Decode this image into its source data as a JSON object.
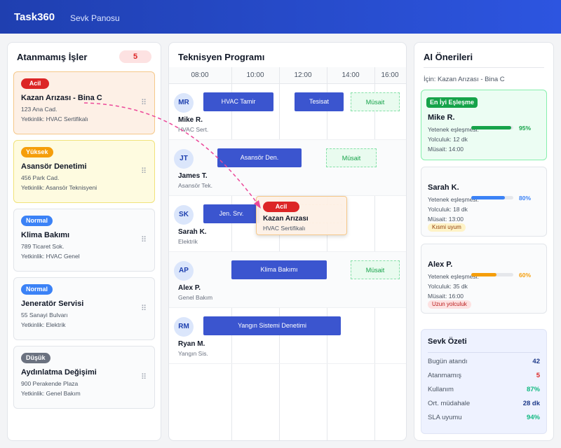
{
  "header": {
    "brand": "Task360",
    "subtitle": "Sevk Panosu"
  },
  "unassigned": {
    "title": "Atanmamış İşler",
    "count": 5,
    "jobs": [
      {
        "priority": "Acil",
        "title": "Kazan Arızası - Bina C",
        "address": "123 Ana Cad.",
        "skill": "Yetkinlik: HVAC Sertifikalı"
      },
      {
        "priority": "Yüksek",
        "title": "Asansör Denetimi",
        "address": "456 Park Cad.",
        "skill": "Yetkinlik: Asansör Teknisyeni"
      },
      {
        "priority": "Normal",
        "title": "Klima Bakımı",
        "address": "789 Ticaret Sok.",
        "skill": "Yetkinlik: HVAC Genel"
      },
      {
        "priority": "Normal",
        "title": "Jeneratör Servisi",
        "address": "55 Sanayi Bulvarı",
        "skill": "Yetkinlik: Elektrik"
      },
      {
        "priority": "Düşük",
        "title": "Aydınlatma Değişimi",
        "address": "900 Perakende Plaza",
        "skill": "Yetkinlik: Genel Bakım"
      }
    ]
  },
  "schedule": {
    "title": "Teknisyen Programı",
    "times": [
      "08:00",
      "10:00",
      "12:00",
      "14:00",
      "16:00"
    ],
    "technicians": [
      {
        "initials": "MR",
        "name": "Mike R.",
        "role": "HVAC Sert.",
        "blocks": [
          "HVAC Tamir",
          "Tesisat",
          "Müsait"
        ]
      },
      {
        "initials": "JT",
        "name": "James T.",
        "role": "Asansör Tek.",
        "blocks": [
          "Asansör Den.",
          "Müsait"
        ]
      },
      {
        "initials": "SK",
        "name": "Sarah K.",
        "role": "Elektrik",
        "blocks": [
          "Jen. Srv."
        ]
      },
      {
        "initials": "AP",
        "name": "Alex P.",
        "role": "Genel Bakım",
        "blocks": [
          "Klima Bakımı",
          "Müsait"
        ]
      },
      {
        "initials": "RM",
        "name": "Ryan M.",
        "role": "Yangın Sis.",
        "blocks": [
          "Yangın Sistemi Denetimi"
        ]
      }
    ],
    "dragged": {
      "priority": "Acil",
      "title": "Kazan Arızası",
      "skill": "HVAC Sertifikalı"
    }
  },
  "suggestions": {
    "title": "AI Önerileri",
    "for": "İçin: Kazan Arızası - Bina C",
    "cards": [
      {
        "badge": "En İyi Eşleşme",
        "name": "Mike R.",
        "match_text": "Yetenek eşleşmesi:",
        "match": 95,
        "match_label": "95%",
        "travel": "Yolculuk: 12 dk",
        "available": "Müsait: 14:00"
      },
      {
        "name": "Sarah K.",
        "match_text": "Yetenek eşleşmesi:",
        "match": 80,
        "match_label": "80%",
        "travel": "Yolculuk: 18 dk",
        "available": "Müsait: 13:00",
        "tag": "Kısmi uyum"
      },
      {
        "name": "Alex P.",
        "match_text": "Yetenek eşleşmesi:",
        "match": 60,
        "match_label": "60%",
        "travel": "Yolculuk: 35 dk",
        "available": "Müsait: 16:00",
        "tag": "Uzun yolculuk"
      }
    ]
  },
  "summary": {
    "title": "Sevk Özeti",
    "rows": [
      {
        "label": "Bugün atandı",
        "value": "42"
      },
      {
        "label": "Atanmamış",
        "value": "5"
      },
      {
        "label": "Kullanım",
        "value": "87%"
      },
      {
        "label": "Ort. müdahale",
        "value": "28 dk"
      },
      {
        "label": "SLA uyumu",
        "value": "94%"
      }
    ]
  }
}
